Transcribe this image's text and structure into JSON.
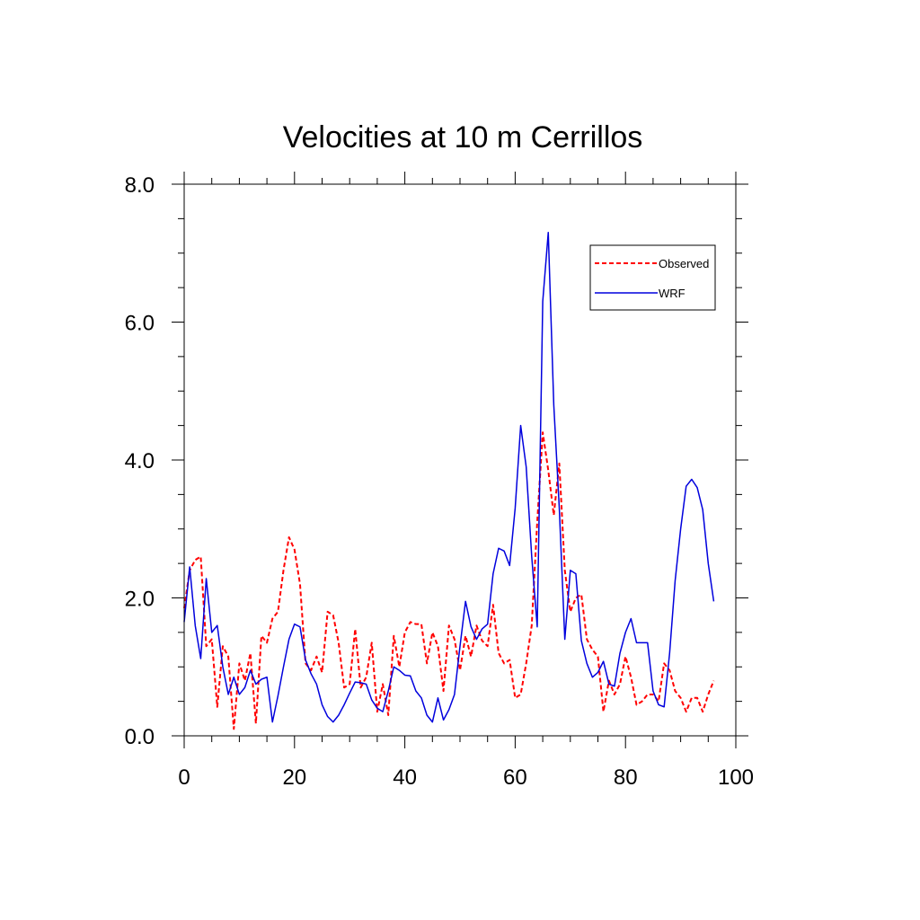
{
  "chart_data": {
    "type": "line",
    "title": "Velocities at 10 m Cerrillos",
    "xlabel": "",
    "ylabel": "",
    "xlim": [
      0,
      100
    ],
    "ylim": [
      0,
      8
    ],
    "x_ticks": [
      0,
      20,
      40,
      60,
      80,
      100
    ],
    "x_tick_labels": [
      "0",
      "20",
      "40",
      "60",
      "80",
      "100"
    ],
    "y_ticks": [
      0,
      2,
      4,
      6,
      8
    ],
    "y_tick_labels": [
      "0.0",
      "2.0",
      "4.0",
      "6.0",
      "8.0"
    ],
    "grid": false,
    "legend_position": "top-right",
    "series": [
      {
        "name": "Observed",
        "color": "#ff0000",
        "style": "dashed",
        "x": [
          0,
          1,
          2,
          3,
          4,
          5,
          6,
          7,
          8,
          9,
          10,
          11,
          12,
          13,
          14,
          15,
          16,
          17,
          18,
          19,
          20,
          21,
          22,
          23,
          24,
          25,
          26,
          27,
          28,
          29,
          30,
          31,
          32,
          33,
          34,
          35,
          36,
          37,
          38,
          39,
          40,
          41,
          42,
          43,
          44,
          45,
          46,
          47,
          48,
          49,
          50,
          51,
          52,
          53,
          54,
          55,
          56,
          57,
          58,
          59,
          60,
          61,
          62,
          63,
          64,
          65,
          66,
          67,
          68,
          69,
          70,
          71,
          72,
          73,
          74,
          75,
          76,
          77,
          78,
          79,
          80,
          81,
          82,
          83,
          84,
          85,
          86,
          87,
          88,
          89,
          90,
          91,
          92,
          93,
          94,
          95,
          96
        ],
        "values": [
          1.85,
          2.4,
          2.55,
          2.6,
          1.3,
          1.4,
          0.42,
          1.3,
          1.15,
          0.1,
          1.05,
          0.8,
          1.2,
          0.18,
          1.45,
          1.35,
          1.7,
          1.8,
          2.4,
          2.88,
          2.7,
          2.2,
          1.05,
          0.95,
          1.15,
          0.92,
          1.8,
          1.75,
          1.35,
          0.7,
          0.75,
          1.55,
          0.7,
          0.85,
          1.35,
          0.35,
          0.75,
          0.3,
          1.45,
          1.0,
          1.5,
          1.65,
          1.62,
          1.62,
          1.05,
          1.5,
          1.3,
          0.65,
          1.6,
          1.4,
          0.95,
          1.45,
          1.15,
          1.6,
          1.38,
          1.3,
          1.9,
          1.2,
          1.05,
          1.1,
          0.55,
          0.6,
          1.05,
          1.6,
          3.1,
          4.4,
          3.85,
          3.2,
          3.95,
          2.4,
          1.8,
          2.0,
          2.05,
          1.4,
          1.25,
          1.15,
          0.35,
          0.8,
          0.6,
          0.75,
          1.15,
          0.85,
          0.45,
          0.5,
          0.6,
          0.6,
          0.5,
          1.05,
          0.95,
          0.65,
          0.55,
          0.35,
          0.55,
          0.55,
          0.35,
          0.6,
          0.8
        ]
      },
      {
        "name": "WRF",
        "color": "#0000dd",
        "style": "solid",
        "x": [
          0,
          1,
          2,
          3,
          4,
          5,
          6,
          7,
          8,
          9,
          10,
          11,
          12,
          13,
          14,
          15,
          16,
          17,
          18,
          19,
          20,
          21,
          22,
          23,
          24,
          25,
          26,
          27,
          28,
          29,
          30,
          31,
          32,
          33,
          34,
          35,
          36,
          37,
          38,
          39,
          40,
          41,
          42,
          43,
          44,
          45,
          46,
          47,
          48,
          49,
          50,
          51,
          52,
          53,
          54,
          55,
          56,
          57,
          58,
          59,
          60,
          61,
          62,
          63,
          64,
          65,
          66,
          67,
          68,
          69,
          70,
          71,
          72,
          73,
          74,
          75,
          76,
          77,
          78,
          79,
          80,
          81,
          82,
          83,
          84,
          85,
          86,
          87,
          88,
          89,
          90,
          91,
          92,
          93,
          94,
          95,
          96
        ],
        "values": [
          1.65,
          2.45,
          1.6,
          1.12,
          2.28,
          1.5,
          1.6,
          1.0,
          0.6,
          0.85,
          0.6,
          0.7,
          0.95,
          0.75,
          0.82,
          0.85,
          0.2,
          0.58,
          1.0,
          1.4,
          1.62,
          1.58,
          1.1,
          0.9,
          0.75,
          0.45,
          0.28,
          0.2,
          0.3,
          0.45,
          0.62,
          0.78,
          0.77,
          0.75,
          0.52,
          0.4,
          0.35,
          0.65,
          1.0,
          0.95,
          0.88,
          0.87,
          0.65,
          0.55,
          0.3,
          0.2,
          0.55,
          0.23,
          0.38,
          0.6,
          1.3,
          1.95,
          1.58,
          1.4,
          1.55,
          1.62,
          2.35,
          2.72,
          2.68,
          2.47,
          3.3,
          4.5,
          3.9,
          2.6,
          1.58,
          6.3,
          7.3,
          4.8,
          3.3,
          1.4,
          2.4,
          2.35,
          1.38,
          1.05,
          0.85,
          0.92,
          1.08,
          0.75,
          0.72,
          1.2,
          1.5,
          1.7,
          1.35,
          1.35,
          1.35,
          0.65,
          0.45,
          0.42,
          1.2,
          2.25,
          3.0,
          3.62,
          3.72,
          3.6,
          3.28,
          2.5,
          1.95
        ]
      }
    ]
  }
}
